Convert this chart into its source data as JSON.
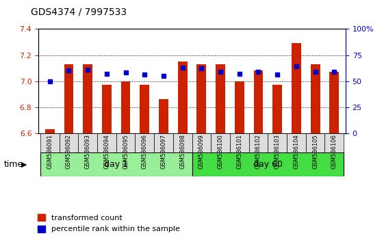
{
  "title": "GDS4374 / 7997533",
  "samples": [
    "GSM586091",
    "GSM586092",
    "GSM586093",
    "GSM586094",
    "GSM586095",
    "GSM586096",
    "GSM586097",
    "GSM586098",
    "GSM586099",
    "GSM586100",
    "GSM586101",
    "GSM586102",
    "GSM586103",
    "GSM586104",
    "GSM586105",
    "GSM586106"
  ],
  "transformed_counts": [
    6.63,
    7.13,
    7.13,
    6.97,
    7.0,
    6.97,
    6.86,
    7.15,
    7.13,
    7.13,
    7.0,
    7.08,
    6.97,
    7.29,
    7.13,
    7.07
  ],
  "percentile_ranks": [
    50,
    60,
    61,
    57,
    58,
    56,
    55,
    63,
    62,
    59,
    57,
    59,
    56,
    64,
    59,
    59
  ],
  "day1_count": 8,
  "day60_count": 8,
  "ylim_left": [
    6.6,
    7.4
  ],
  "ylim_right": [
    0,
    100
  ],
  "yticks_left": [
    6.6,
    6.8,
    7.0,
    7.2,
    7.4
  ],
  "yticks_right": [
    0,
    25,
    50,
    75,
    100
  ],
  "ytick_labels_right": [
    "0",
    "25",
    "50",
    "75",
    "100%"
  ],
  "bar_color": "#CC2200",
  "dot_color": "#0000CC",
  "day1_color": "#99EE99",
  "day60_color": "#44DD44",
  "bg_color": "#DDDDDD",
  "plot_bg": "#FFFFFF",
  "legend_red": "transformed count",
  "legend_blue": "percentile rank within the sample",
  "bar_width": 0.5
}
